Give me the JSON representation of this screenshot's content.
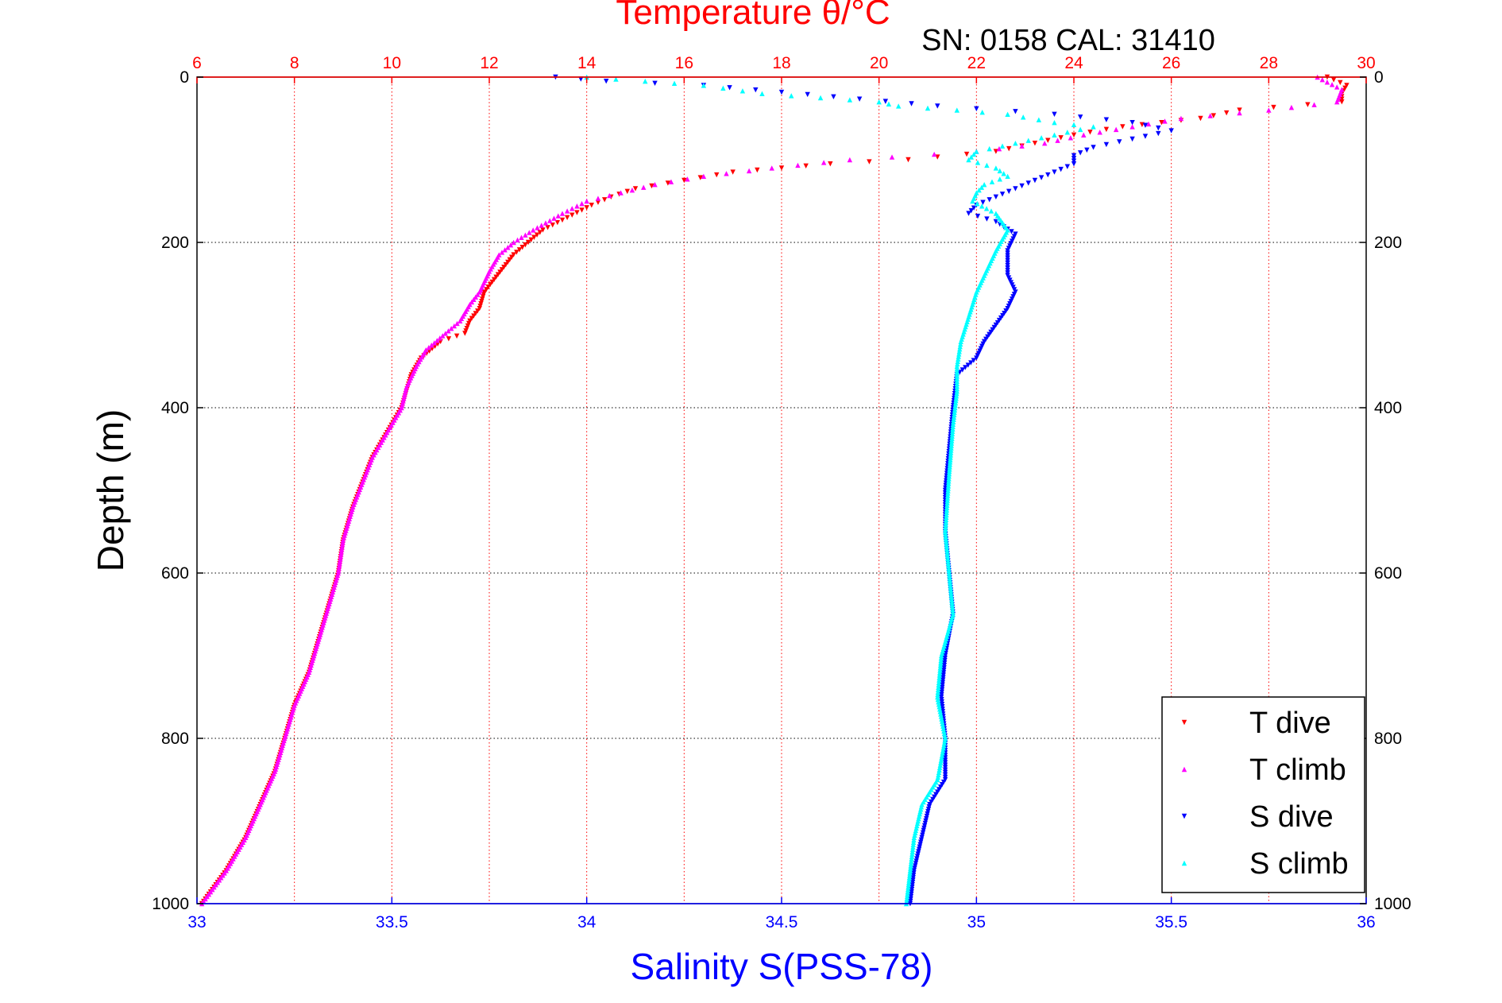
{
  "chart_data": {
    "type": "scatter",
    "title": "Temperature θ/°C",
    "subtitle": "SN: 0158  CAL: 31410",
    "xlabel": "Salinity S(PSS-78)",
    "ylabel": "Depth (m)",
    "top_axis": {
      "label": "Temperature θ/°C",
      "range": [
        6,
        30
      ],
      "ticks": [
        "6",
        "8",
        "10",
        "12",
        "14",
        "16",
        "18",
        "20",
        "22",
        "24",
        "26",
        "28",
        "30"
      ],
      "color": "#ff0000"
    },
    "bottom_axis": {
      "label": "Salinity S(PSS-78)",
      "range": [
        33,
        36
      ],
      "ticks": [
        "33",
        "33.5",
        "34",
        "34.5",
        "35",
        "35.5",
        "36"
      ],
      "color": "#0000ff"
    },
    "y_axis": {
      "range": [
        0,
        1000
      ],
      "reversed": true,
      "ticks": [
        "0",
        "200",
        "400",
        "600",
        "800",
        "1000"
      ]
    },
    "grid": true,
    "legend_position": "bottom-right",
    "series": [
      {
        "name": "T dive",
        "axis": "temperature",
        "color": "#ff0000",
        "marker": "triangle-down",
        "points": [
          [
            29.2,
            0
          ],
          [
            29.6,
            10
          ],
          [
            29.5,
            20
          ],
          [
            29.5,
            30
          ],
          [
            27.4,
            40
          ],
          [
            26.6,
            50
          ],
          [
            25.8,
            55
          ],
          [
            25.0,
            60
          ],
          [
            24.0,
            70
          ],
          [
            23.2,
            80
          ],
          [
            22.4,
            90
          ],
          [
            20.6,
            100
          ],
          [
            19.0,
            105
          ],
          [
            18.0,
            110
          ],
          [
            17.0,
            115
          ],
          [
            16.0,
            125
          ],
          [
            15.0,
            135
          ],
          [
            14.5,
            145
          ],
          [
            14.1,
            155
          ],
          [
            13.6,
            170
          ],
          [
            13.1,
            185
          ],
          [
            12.8,
            200
          ],
          [
            12.5,
            215
          ],
          [
            12.3,
            230
          ],
          [
            12.1,
            245
          ],
          [
            11.9,
            260
          ],
          [
            11.8,
            280
          ],
          [
            11.6,
            295
          ],
          [
            11.5,
            310
          ],
          [
            11.0,
            320
          ],
          [
            10.6,
            340
          ],
          [
            10.4,
            360
          ],
          [
            10.3,
            380
          ],
          [
            10.2,
            400
          ],
          [
            9.9,
            430
          ],
          [
            9.6,
            460
          ],
          [
            9.4,
            490
          ],
          [
            9.2,
            520
          ],
          [
            9.0,
            560
          ],
          [
            8.9,
            600
          ],
          [
            8.7,
            640
          ],
          [
            8.5,
            680
          ],
          [
            8.3,
            720
          ],
          [
            8.0,
            760
          ],
          [
            7.8,
            800
          ],
          [
            7.6,
            840
          ],
          [
            7.3,
            880
          ],
          [
            7.0,
            920
          ],
          [
            6.6,
            960
          ],
          [
            6.1,
            1000
          ]
        ]
      },
      {
        "name": "T climb",
        "axis": "temperature",
        "color": "#ff00ff",
        "marker": "triangle-up",
        "points": [
          [
            29.0,
            0
          ],
          [
            29.5,
            15
          ],
          [
            29.4,
            30
          ],
          [
            28.0,
            40
          ],
          [
            26.2,
            50
          ],
          [
            25.2,
            60
          ],
          [
            24.2,
            70
          ],
          [
            23.4,
            80
          ],
          [
            22.0,
            90
          ],
          [
            19.4,
            100
          ],
          [
            17.8,
            110
          ],
          [
            16.4,
            120
          ],
          [
            15.4,
            130
          ],
          [
            14.7,
            140
          ],
          [
            14.0,
            150
          ],
          [
            13.5,
            165
          ],
          [
            12.9,
            185
          ],
          [
            12.5,
            200
          ],
          [
            12.2,
            215
          ],
          [
            12.0,
            235
          ],
          [
            11.8,
            260
          ],
          [
            11.6,
            275
          ],
          [
            11.4,
            295
          ],
          [
            11.1,
            310
          ],
          [
            10.7,
            330
          ],
          [
            10.5,
            350
          ],
          [
            10.3,
            375
          ],
          [
            10.2,
            400
          ],
          [
            9.9,
            430
          ],
          [
            9.6,
            460
          ],
          [
            9.4,
            490
          ],
          [
            9.2,
            520
          ],
          [
            9.0,
            560
          ],
          [
            8.9,
            600
          ],
          [
            8.7,
            640
          ],
          [
            8.5,
            680
          ],
          [
            8.3,
            720
          ],
          [
            8.0,
            760
          ],
          [
            7.8,
            800
          ],
          [
            7.6,
            840
          ],
          [
            7.3,
            880
          ],
          [
            7.0,
            920
          ],
          [
            6.6,
            960
          ],
          [
            6.1,
            1000
          ]
        ]
      },
      {
        "name": "S dive",
        "axis": "salinity",
        "color": "#0000ff",
        "marker": "triangle-down",
        "points": [
          [
            33.92,
            0
          ],
          [
            34.05,
            5
          ],
          [
            34.3,
            10
          ],
          [
            34.9,
            35
          ],
          [
            35.2,
            45
          ],
          [
            35.4,
            55
          ],
          [
            35.5,
            65
          ],
          [
            35.4,
            75
          ],
          [
            35.3,
            85
          ],
          [
            35.25,
            95
          ],
          [
            35.25,
            105
          ],
          [
            35.2,
            115
          ],
          [
            35.15,
            125
          ],
          [
            35.1,
            135
          ],
          [
            35.05,
            145
          ],
          [
            35.0,
            155
          ],
          [
            34.98,
            165
          ],
          [
            35.05,
            175
          ],
          [
            35.1,
            190
          ],
          [
            35.08,
            210
          ],
          [
            35.08,
            240
          ],
          [
            35.1,
            260
          ],
          [
            35.08,
            280
          ],
          [
            35.05,
            300
          ],
          [
            35.02,
            320
          ],
          [
            35.0,
            340
          ],
          [
            34.95,
            360
          ],
          [
            34.94,
            400
          ],
          [
            34.93,
            450
          ],
          [
            34.92,
            500
          ],
          [
            34.92,
            550
          ],
          [
            34.93,
            600
          ],
          [
            34.94,
            650
          ],
          [
            34.92,
            700
          ],
          [
            34.91,
            750
          ],
          [
            34.92,
            800
          ],
          [
            34.92,
            850
          ],
          [
            34.88,
            880
          ],
          [
            34.86,
            920
          ],
          [
            34.84,
            960
          ],
          [
            34.83,
            1000
          ]
        ]
      },
      {
        "name": "S climb",
        "axis": "salinity",
        "color": "#00ffff",
        "marker": "triangle-up",
        "points": [
          [
            34.0,
            0
          ],
          [
            34.15,
            5
          ],
          [
            34.3,
            10
          ],
          [
            34.45,
            20
          ],
          [
            34.6,
            25
          ],
          [
            34.75,
            30
          ],
          [
            34.8,
            35
          ],
          [
            34.95,
            40
          ],
          [
            35.08,
            45
          ],
          [
            35.2,
            55
          ],
          [
            35.3,
            60
          ],
          [
            35.2,
            70
          ],
          [
            35.1,
            80
          ],
          [
            35.0,
            90
          ],
          [
            34.98,
            100
          ],
          [
            35.05,
            110
          ],
          [
            35.08,
            120
          ],
          [
            35.02,
            130
          ],
          [
            35.0,
            140
          ],
          [
            34.99,
            150
          ],
          [
            35.05,
            165
          ],
          [
            35.08,
            185
          ],
          [
            35.05,
            210
          ],
          [
            35.02,
            240
          ],
          [
            35.0,
            260
          ],
          [
            34.98,
            290
          ],
          [
            34.96,
            320
          ],
          [
            34.95,
            350
          ],
          [
            34.95,
            380
          ],
          [
            34.94,
            420
          ],
          [
            34.93,
            480
          ],
          [
            34.92,
            550
          ],
          [
            34.93,
            600
          ],
          [
            34.94,
            650
          ],
          [
            34.91,
            700
          ],
          [
            34.9,
            750
          ],
          [
            34.92,
            800
          ],
          [
            34.9,
            850
          ],
          [
            34.86,
            880
          ],
          [
            34.84,
            920
          ],
          [
            34.83,
            960
          ],
          [
            34.82,
            1000
          ]
        ]
      }
    ]
  }
}
